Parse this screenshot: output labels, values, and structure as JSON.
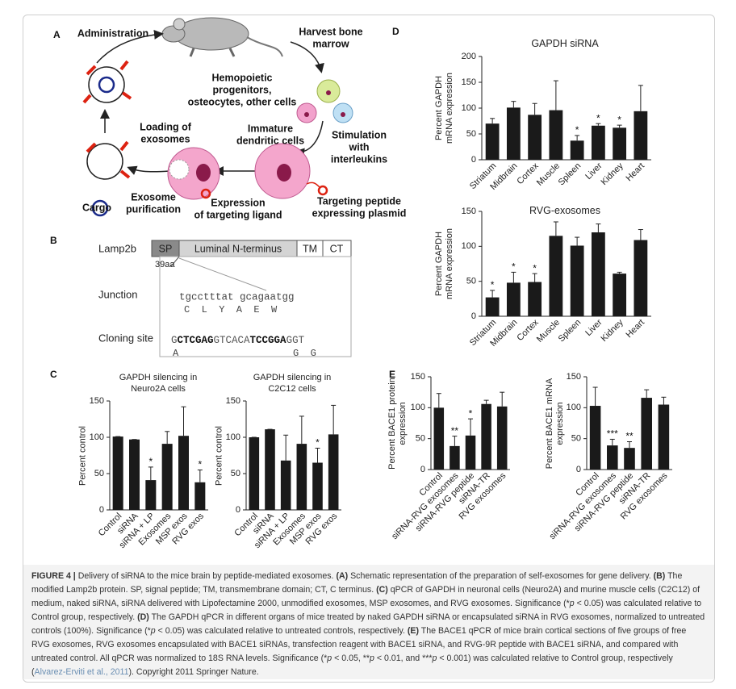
{
  "panel_letters": [
    "A",
    "B",
    "C",
    "D",
    "E"
  ],
  "diagram_a": {
    "labels": [
      [
        "Administration"
      ],
      [
        "Harvest bone",
        "marrow"
      ],
      [
        "Hemopoietic",
        "progenitors,",
        "osteocytes, other cells"
      ],
      [
        "Stimulation",
        "with",
        "interleukins"
      ],
      [
        "Immature",
        "dendritic cells"
      ],
      [
        "Loading of",
        "exosomes"
      ],
      [
        "Targeting peptide",
        "expressing plasmid"
      ],
      [
        "Expression",
        "of targeting ligand"
      ],
      [
        "Exosome",
        "purification"
      ],
      [
        "Cargo"
      ]
    ]
  },
  "diagram_b": {
    "protein": "Lamp2b",
    "domains": [
      "SP",
      "Luminal N-terminus",
      "TM",
      "CT"
    ],
    "marker": "39aa",
    "junction_label": "Junction",
    "junction_seq": "tgcctttat gcagaatgg",
    "junction_aa": "C  L  Y  A  E  W",
    "cloning_label": "Cloning site",
    "cloning_seq": [
      {
        "text": "G"
      },
      {
        "text": "CTCGAG",
        "style": "bold"
      },
      {
        "text": "GTCACA"
      },
      {
        "text": "TCCGGA",
        "style": "bold"
      },
      {
        "text": "GGT"
      }
    ],
    "cloning_aa": [
      "A",
      "G  G"
    ]
  },
  "chart_data": [
    {
      "type": "bar",
      "title": "GAPDH silencing in Neuro2A cells",
      "ylabel": "Percent control",
      "color": "#1a1a1a",
      "categories": [
        "Control",
        "siRNA",
        "siRNA + LP",
        "Exosomes",
        "MSP exos",
        "RVG exos"
      ],
      "values": [
        101,
        97,
        41,
        91,
        102,
        38
      ],
      "errors": [
        0,
        0,
        18,
        17,
        40,
        17
      ],
      "significance": [
        null,
        null,
        "*",
        null,
        null,
        "*"
      ],
      "ylim": [
        0,
        150
      ],
      "yticks": [
        0,
        50,
        100,
        150
      ]
    },
    {
      "type": "bar",
      "title": "GAPDH silencing in C2C12 cells",
      "ylabel": "Percent control",
      "color": "#1a1a1a",
      "categories": [
        "Control",
        "siRNA",
        "siRNA + LP",
        "Exosomes",
        "MSP exos",
        "RVG exos"
      ],
      "values": [
        100,
        111,
        68,
        91,
        65,
        104
      ],
      "errors": [
        0,
        0,
        35,
        38,
        20,
        40
      ],
      "significance": [
        null,
        null,
        null,
        null,
        "*",
        null
      ],
      "ylim": [
        0,
        150
      ],
      "yticks": [
        0,
        50,
        100,
        150
      ]
    },
    {
      "type": "bar",
      "title": "GAPDH siRNA",
      "ylabel": "Percent GAPDH mRNA expression",
      "color": "#1a1a1a",
      "categories": [
        "Striatum",
        "Midbrain",
        "Cortex",
        "Muscle",
        "Spleen",
        "Liver",
        "Kidney",
        "Heart"
      ],
      "values": [
        70,
        101,
        87,
        96,
        37,
        66,
        62,
        94
      ],
      "errors": [
        10,
        12,
        22,
        57,
        10,
        4,
        5,
        50
      ],
      "significance": [
        null,
        null,
        null,
        null,
        "*",
        "*",
        "*",
        null
      ],
      "ylim": [
        0,
        200
      ],
      "yticks": [
        0,
        50,
        100,
        150,
        200
      ]
    },
    {
      "type": "bar",
      "title": "RVG-exosomes",
      "ylabel": "Percent GAPDH mRNA expression",
      "color": "#1a1a1a",
      "categories": [
        "Striatum",
        "Midbrain",
        "Cortex",
        "Muscle",
        "Spleen",
        "Liver",
        "Kidney",
        "Heart"
      ],
      "values": [
        27,
        48,
        49,
        115,
        101,
        120,
        61,
        109
      ],
      "errors": [
        10,
        15,
        12,
        20,
        12,
        12,
        2,
        15
      ],
      "significance": [
        "*",
        "*",
        "*",
        null,
        null,
        null,
        null,
        null
      ],
      "ylim": [
        0,
        150
      ],
      "yticks": [
        0,
        50,
        100,
        150
      ]
    },
    {
      "type": "bar",
      "ylabel": "Percent BACE1 protein expression",
      "color": "#1a1a1a",
      "categories": [
        "Control",
        "siRNA-RVG exosomes",
        "siRNA-RVG peptide",
        "siRNA-TR",
        "RVG exosomes"
      ],
      "values": [
        100,
        38,
        55,
        106,
        102
      ],
      "errors": [
        23,
        16,
        27,
        6,
        23
      ],
      "significance": [
        null,
        "**",
        "*",
        null,
        null
      ],
      "ylim": [
        0,
        150
      ],
      "yticks": [
        0,
        50,
        100,
        150
      ]
    },
    {
      "type": "bar",
      "ylabel": "Percent BACE1 mRNA expression",
      "color": "#1a1a1a",
      "categories": [
        "Control",
        "siRNA-RVG exosomes",
        "siRNA-RVG peptide",
        "siRNA-TR",
        "RVG exosomes"
      ],
      "values": [
        103,
        39,
        35,
        116,
        105
      ],
      "errors": [
        30,
        10,
        10,
        13,
        12
      ],
      "significance": [
        null,
        "***",
        "**",
        null,
        null
      ],
      "ylim": [
        0,
        150
      ],
      "yticks": [
        0,
        50,
        100,
        150
      ]
    }
  ],
  "caption": [
    {
      "text": "FIGURE 4 | ",
      "style": "bold"
    },
    {
      "text": "Delivery of siRNA to the mice brain by peptide-mediated exosomes. "
    },
    {
      "text": "(A)",
      "style": "bold"
    },
    {
      "text": " Schematic representation of the preparation of self-exosomes for gene delivery. "
    },
    {
      "text": "(B)",
      "style": "bold"
    },
    {
      "text": " The modified Lamp2b protein. SP, signal peptide; TM, transmembrane domain; CT, C terminus. "
    },
    {
      "text": "(C)",
      "style": "bold"
    },
    {
      "text": " qPCR of GAPDH in neuronal cells (Neuro2A) and murine muscle cells (C2C12) of medium, naked siRNA, siRNA delivered with Lipofectamine 2000, unmodified exosomes, MSP exosomes, and RVG exosomes. Significance (*"
    },
    {
      "text": "p",
      "style": "italic"
    },
    {
      "text": " < 0.05) was calculated relative to Control group, respectively. "
    },
    {
      "text": "(D)",
      "style": "bold"
    },
    {
      "text": " The GAPDH qPCR in different organs of mice treated by naked GAPDH siRNA or encapsulated siRNA in RVG exosomes, normalized to untreated controls (100%). Significance (*"
    },
    {
      "text": "p",
      "style": "italic"
    },
    {
      "text": " < 0.05) was calculated relative to untreated controls, respectively. "
    },
    {
      "text": "(E)",
      "style": "bold"
    },
    {
      "text": " The BACE1 qPCR of mice brain cortical sections of five groups of free RVG exosomes, RVG exosomes encapsulated with BACE1 siRNAs, transfection reagent with BACE1 siRNA, and RVG-9R peptide with BACE1 siRNA, and compared with untreated control. All qPCR was normalized to 18S RNA levels. Significance (*"
    },
    {
      "text": "p",
      "style": "italic"
    },
    {
      "text": " < 0.05, **"
    },
    {
      "text": "p",
      "style": "italic"
    },
    {
      "text": " < 0.01, and ***"
    },
    {
      "text": "p",
      "style": "italic"
    },
    {
      "text": " < 0.001) was calculated relative to Control group, respectively ("
    },
    {
      "text": "Alvarez-Erviti et al., 2011",
      "style": "link"
    },
    {
      "text": "). Copyright 2011 Springer Nature."
    }
  ]
}
